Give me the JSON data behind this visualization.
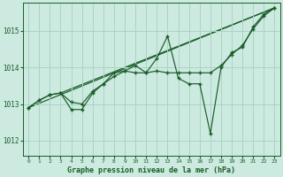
{
  "background_color": "#cceae0",
  "grid_color": "#aad4c4",
  "line_color": "#1a5c28",
  "title": "Graphe pression niveau de la mer (hPa)",
  "xlim": [
    -0.5,
    23.5
  ],
  "ylim": [
    1011.6,
    1015.75
  ],
  "yticks": [
    1012,
    1013,
    1014,
    1015
  ],
  "xticks": [
    0,
    1,
    2,
    3,
    4,
    5,
    6,
    7,
    8,
    9,
    10,
    11,
    12,
    13,
    14,
    15,
    16,
    17,
    18,
    19,
    20,
    21,
    22,
    23
  ],
  "line1_x": [
    0,
    1,
    2,
    3,
    4,
    5,
    6,
    7,
    8,
    9,
    10,
    11,
    12,
    13,
    14,
    15,
    16,
    17,
    18,
    19,
    20,
    21,
    22,
    23
  ],
  "line1_y": [
    1012.9,
    1013.1,
    1013.25,
    1013.3,
    1012.85,
    1012.85,
    1013.3,
    1013.55,
    1013.85,
    1013.9,
    1014.05,
    1013.85,
    1014.25,
    1014.85,
    1013.7,
    1013.55,
    1013.55,
    1012.2,
    1014.0,
    1014.4,
    1014.55,
    1015.1,
    1015.45,
    1015.62
  ],
  "line2_x": [
    0,
    1,
    2,
    3,
    4,
    5,
    6,
    7,
    8,
    9,
    10,
    11,
    12,
    13,
    14,
    15,
    16,
    17,
    18,
    19,
    20,
    21,
    22,
    23
  ],
  "line2_y": [
    1012.9,
    1013.1,
    1013.25,
    1013.3,
    1013.05,
    1013.0,
    1013.35,
    1013.55,
    1013.75,
    1013.9,
    1013.85,
    1013.85,
    1013.9,
    1013.85,
    1013.85,
    1013.85,
    1013.85,
    1013.85,
    1014.05,
    1014.35,
    1014.6,
    1015.05,
    1015.4,
    1015.62
  ],
  "trend1_x": [
    0,
    23
  ],
  "trend1_y": [
    1012.9,
    1015.62
  ],
  "trend2_x": [
    3,
    23
  ],
  "trend2_y": [
    1013.3,
    1015.62
  ]
}
